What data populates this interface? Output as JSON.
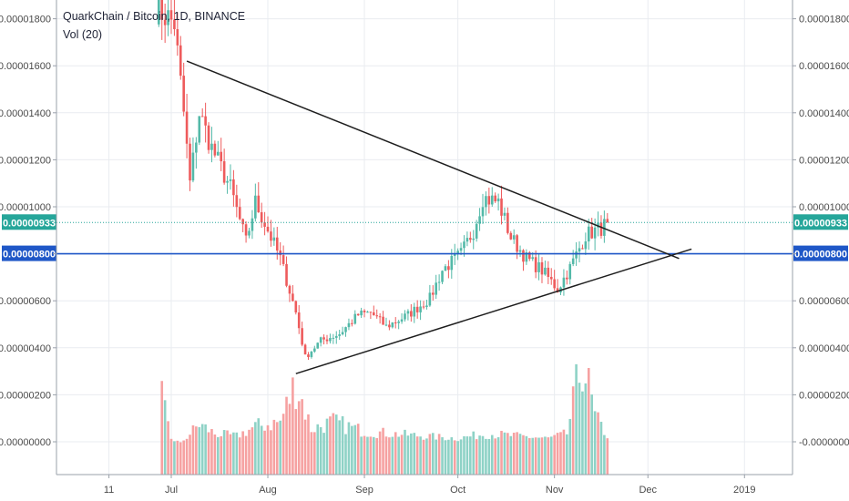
{
  "header": {
    "title": "QuarkChain / Bitcoin, 1D, BINANCE",
    "volume_label": "Vol (20)"
  },
  "colors": {
    "up": "#53b9a8",
    "down": "#ee5b5c",
    "up_volume": "#8ed2c6",
    "down_volume": "#f6a1a1",
    "grid": "#e9ecf0",
    "horizontal_line": "#1f57c7",
    "price_line": "#26a69a",
    "trendline": "#1e1e1e"
  },
  "chart_data": {
    "type": "candlestick",
    "symbol": "QuarkChain / Bitcoin",
    "interval": "1D",
    "exchange": "BINANCE",
    "grid": true,
    "y_tick_labels": [
      "0.00001800",
      "0.00001600",
      "0.00001400",
      "0.00001200",
      "0.00001000",
      "0.00000800",
      "0.00000600",
      "0.00000400",
      "0.00000200",
      "-0.00000000"
    ],
    "price_tick_labels": [
      "0.00001800",
      "0.00001600",
      "0.00001400",
      "0.00001200",
      "0.00001000",
      "0.00000600",
      "0.00000400"
    ],
    "volume_tick_labels": [
      "0.00000200",
      "-0.00000000"
    ],
    "x_tick_labels": [
      "11",
      "Jul",
      "Aug",
      "Sep",
      "Oct",
      "Nov",
      "Dec",
      "2019"
    ],
    "last_price_label": "0.00000933",
    "horizontal_line_label": "0.00000800",
    "horizontal_line_value": 8e-06,
    "last_price_value": 9.33e-06,
    "trendlines": [
      {
        "from": {
          "date": "2018-07-06",
          "price": 1.62e-05
        },
        "to": {
          "date": "2018-12-11",
          "price": 7.8e-06
        }
      },
      {
        "from": {
          "date": "2018-08-10",
          "price": 2.9e-06
        },
        "to": {
          "date": "2018-12-15",
          "price": 8.2e-06
        }
      }
    ],
    "anchors": [
      {
        "date": "2018-06-26",
        "price": 1.85e-05
      },
      {
        "date": "2018-07-02",
        "price": 1.78e-05
      },
      {
        "date": "2018-07-05",
        "price": 1.4e-05
      },
      {
        "date": "2018-07-07",
        "price": 1.1e-05
      },
      {
        "date": "2018-07-10",
        "price": 1.4e-05
      },
      {
        "date": "2018-07-14",
        "price": 1.25e-05
      },
      {
        "date": "2018-07-20",
        "price": 1.08e-05
      },
      {
        "date": "2018-07-25",
        "price": 8.5e-06
      },
      {
        "date": "2018-07-28",
        "price": 1.02e-05
      },
      {
        "date": "2018-08-01",
        "price": 9e-06
      },
      {
        "date": "2018-08-05",
        "price": 7.8e-06
      },
      {
        "date": "2018-08-10",
        "price": 5.5e-06
      },
      {
        "date": "2018-08-13",
        "price": 3.6e-06
      },
      {
        "date": "2018-08-18",
        "price": 4.3e-06
      },
      {
        "date": "2018-08-24",
        "price": 4.6e-06
      },
      {
        "date": "2018-08-30",
        "price": 5.4e-06
      },
      {
        "date": "2018-09-03",
        "price": 5.5e-06
      },
      {
        "date": "2018-09-08",
        "price": 4.9e-06
      },
      {
        "date": "2018-09-15",
        "price": 5.4e-06
      },
      {
        "date": "2018-09-22",
        "price": 6.1e-06
      },
      {
        "date": "2018-09-26",
        "price": 7.3e-06
      },
      {
        "date": "2018-10-02",
        "price": 8e-06
      },
      {
        "date": "2018-10-06",
        "price": 9e-06
      },
      {
        "date": "2018-10-09",
        "price": 1.04e-05
      },
      {
        "date": "2018-10-14",
        "price": 1.02e-05
      },
      {
        "date": "2018-10-18",
        "price": 8.7e-06
      },
      {
        "date": "2018-10-23",
        "price": 7.8e-06
      },
      {
        "date": "2018-10-28",
        "price": 7.3e-06
      },
      {
        "date": "2018-11-02",
        "price": 6.5e-06
      },
      {
        "date": "2018-11-06",
        "price": 7.4e-06
      },
      {
        "date": "2018-11-11",
        "price": 8.8e-06
      },
      {
        "date": "2018-11-16",
        "price": 9.1e-06
      },
      {
        "date": "2018-11-18",
        "price": 9.3e-06
      }
    ],
    "volume_anchors": [
      {
        "date": "2018-06-28",
        "value": 1.9e-06
      },
      {
        "date": "2018-07-01",
        "value": 3e-07
      },
      {
        "date": "2018-07-04",
        "value": 1e-07
      },
      {
        "date": "2018-07-10",
        "value": 9e-07
      },
      {
        "date": "2018-07-15",
        "value": 5e-07
      },
      {
        "date": "2018-07-22",
        "value": 4e-07
      },
      {
        "date": "2018-07-28",
        "value": 8e-07
      },
      {
        "date": "2018-08-05",
        "value": 1e-06
      },
      {
        "date": "2018-08-10",
        "value": 2.7e-06
      },
      {
        "date": "2018-08-15",
        "value": 7e-07
      },
      {
        "date": "2018-08-22",
        "value": 1e-06
      },
      {
        "date": "2018-09-01",
        "value": 6e-07
      },
      {
        "date": "2018-09-10",
        "value": 5e-07
      },
      {
        "date": "2018-09-20",
        "value": 4e-07
      },
      {
        "date": "2018-10-01",
        "value": 3e-07
      },
      {
        "date": "2018-10-10",
        "value": 5e-07
      },
      {
        "date": "2018-10-20",
        "value": 4e-07
      },
      {
        "date": "2018-10-30",
        "value": 3e-07
      },
      {
        "date": "2018-11-05",
        "value": 5e-07
      },
      {
        "date": "2018-11-10",
        "value": 3.7e-06
      },
      {
        "date": "2018-11-14",
        "value": 1.2e-06
      },
      {
        "date": "2018-11-18",
        "value": 4e-07
      }
    ]
  }
}
